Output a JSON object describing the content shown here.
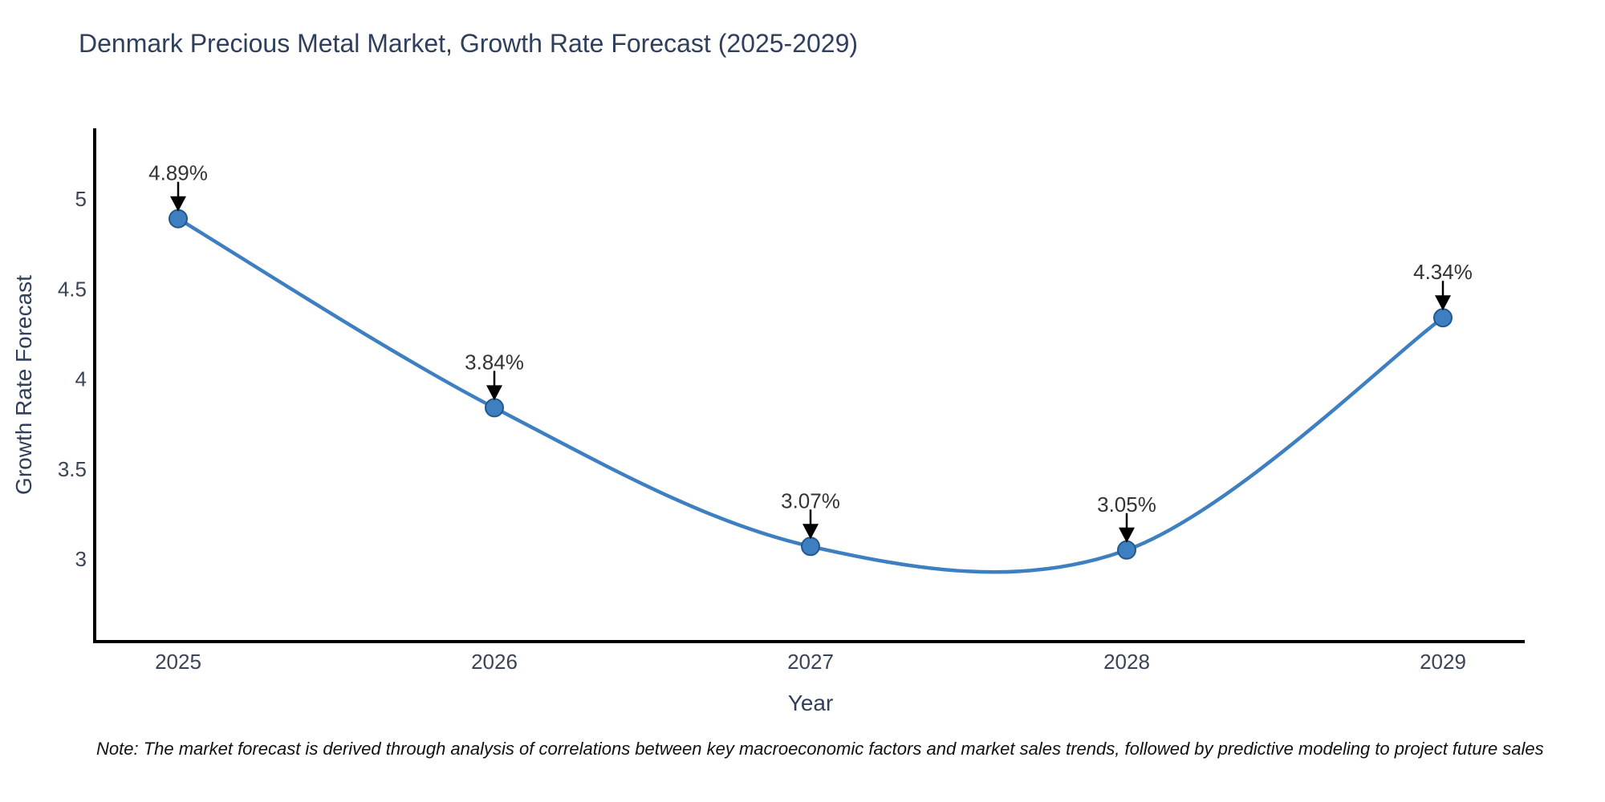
{
  "chart_data": {
    "type": "line",
    "title": "Denmark Precious Metal Market, Growth Rate Forecast (2025-2029)",
    "xlabel": "Year",
    "ylabel": "Growth Rate Forecast",
    "x": [
      2025,
      2026,
      2027,
      2028,
      2029
    ],
    "series": [
      {
        "name": "Growth Rate Forecast",
        "values": [
          4.89,
          3.84,
          3.07,
          3.05,
          4.34
        ]
      }
    ],
    "point_labels": [
      "4.89%",
      "3.84%",
      "3.07%",
      "3.05%",
      "4.34%"
    ],
    "yticks": [
      3,
      3.5,
      4,
      4.5,
      5
    ],
    "ylim": [
      2.55,
      5.4
    ],
    "grid": false,
    "legend_position": "none",
    "line_style": "spline",
    "colors": {
      "line": "#3e7fc1",
      "marker": "#3e7fc1",
      "marker_edge": "#24588a",
      "axis": "#000000",
      "tick_text": "#3a4454",
      "title_text": "#2f3f5c",
      "annotation_text": "#333333",
      "arrow": "#000000"
    }
  },
  "note": {
    "text": "Note: The market forecast is derived through analysis of correlations between key macroeconomic factors and market sales trends, followed by predictive modeling to project future sales"
  }
}
